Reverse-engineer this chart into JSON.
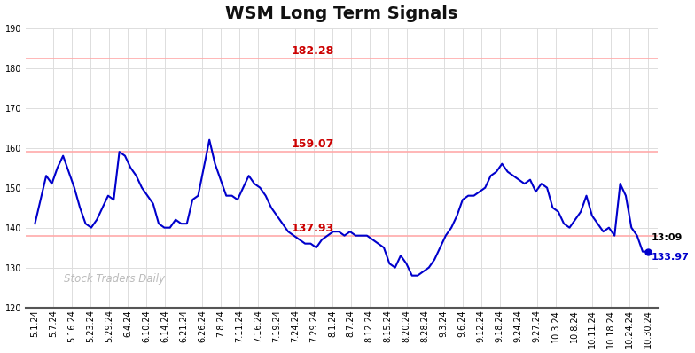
{
  "title": "WSM Long Term Signals",
  "x_labels": [
    "5.1.24",
    "5.7.24",
    "5.16.24",
    "5.23.24",
    "5.29.24",
    "6.4.24",
    "6.10.24",
    "6.14.24",
    "6.21.24",
    "6.26.24",
    "7.8.24",
    "7.11.24",
    "7.16.24",
    "7.19.24",
    "7.24.24",
    "7.29.24",
    "8.1.24",
    "8.7.24",
    "8.12.24",
    "8.15.24",
    "8.20.24",
    "8.28.24",
    "9.3.24",
    "9.6.24",
    "9.12.24",
    "9.18.24",
    "9.24.24",
    "9.27.24",
    "10.3.24",
    "10.8.24",
    "10.11.24",
    "10.18.24",
    "10.24.24",
    "10.30.24"
  ],
  "prices": [
    141,
    147,
    153,
    151,
    155,
    158,
    154,
    150,
    145,
    141,
    140,
    142,
    145,
    148,
    147,
    159,
    158,
    155,
    153,
    150,
    148,
    146,
    141,
    140,
    140,
    142,
    141,
    141,
    147,
    148,
    155,
    162,
    156,
    152,
    148,
    148,
    147,
    150,
    153,
    151,
    150,
    148,
    145,
    143,
    141,
    139,
    138,
    137,
    136,
    136,
    135,
    137,
    138,
    139,
    139,
    138,
    139,
    138,
    138,
    138,
    137,
    136,
    135,
    131,
    130,
    133,
    131,
    128,
    128,
    129,
    130,
    132,
    135,
    138,
    140,
    143,
    147,
    148,
    148,
    149,
    150,
    153,
    154,
    156,
    154,
    153,
    152,
    151,
    152,
    149,
    151,
    150,
    145,
    144,
    141,
    140,
    142,
    144,
    148,
    143,
    141,
    139,
    140,
    138,
    151,
    148,
    140,
    138,
    134,
    134
  ],
  "line_color": "#0000cc",
  "line_width": 1.5,
  "hline_upper": 182.28,
  "hline_middle": 159.07,
  "hline_lower": 137.93,
  "hline_color": "#ffaaaa",
  "hline_label_upper": "182.28",
  "hline_label_middle": "159.07",
  "hline_label_lower": "137.93",
  "hline_label_color": "#cc0000",
  "annotation_time": "13:09",
  "annotation_value": "133.97",
  "annotation_color_time": "#000000",
  "annotation_color_value": "#0000cc",
  "watermark": "Stock Traders Daily",
  "watermark_color": "#bbbbbb",
  "bg_color": "#ffffff",
  "grid_color": "#dddddd",
  "ylim_min": 120,
  "ylim_max": 190,
  "yticks": [
    120,
    130,
    140,
    150,
    160,
    170,
    180,
    190
  ],
  "title_fontsize": 14,
  "tick_fontsize": 7
}
